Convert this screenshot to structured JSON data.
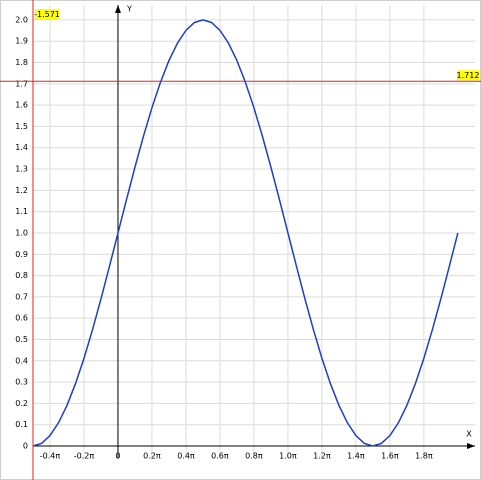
{
  "chart_data": {
    "type": "line",
    "x_label": "X",
    "y_label": "Y",
    "x": [
      -1.571,
      -1.414,
      -1.257,
      -1.1,
      -0.942,
      -0.785,
      -0.628,
      -0.471,
      -0.314,
      -0.157,
      0,
      0.157,
      0.314,
      0.471,
      0.628,
      0.785,
      0.942,
      1.1,
      1.257,
      1.414,
      1.571,
      1.728,
      1.885,
      2.042,
      2.199,
      2.356,
      2.513,
      2.67,
      2.827,
      2.985,
      3.142,
      3.299,
      3.456,
      3.613,
      3.77,
      3.927,
      4.084,
      4.241,
      4.398,
      4.555,
      4.712,
      4.869,
      5.027,
      5.184,
      5.341,
      5.498,
      5.655,
      5.812,
      5.969,
      6.126,
      6.283
    ],
    "series": [
      {
        "color": "#1f3fbf",
        "values": [
          0,
          0.012,
          0.049,
          0.109,
          0.191,
          0.293,
          0.412,
          0.546,
          0.691,
          0.844,
          1,
          1.156,
          1.309,
          1.454,
          1.588,
          1.707,
          1.809,
          1.891,
          1.951,
          1.988,
          2,
          1.988,
          1.951,
          1.891,
          1.809,
          1.707,
          1.588,
          1.454,
          1.309,
          1.156,
          1,
          0.844,
          0.691,
          0.546,
          0.412,
          0.293,
          0.191,
          0.109,
          0.049,
          0.012,
          0,
          0.012,
          0.049,
          0.109,
          0.191,
          0.293,
          0.412,
          0.546,
          0.691,
          0.844,
          1
        ]
      }
    ],
    "xlim": [
      -1.571,
      6.6
    ],
    "ylim": [
      0,
      2.07
    ],
    "xticks": [
      {
        "value": -1.257,
        "label": "-0.4π"
      },
      {
        "value": -0.628,
        "label": "-0.2π"
      },
      0,
      {
        "value": 0.628,
        "label": "0.2π"
      },
      {
        "value": 1.257,
        "label": "0.4π"
      },
      {
        "value": 1.885,
        "label": "0.6π"
      },
      {
        "value": 2.513,
        "label": "0.8π"
      },
      {
        "value": 3.142,
        "label": "1.0π"
      },
      {
        "value": 3.77,
        "label": "1.2π"
      },
      {
        "value": 4.398,
        "label": "1.4π"
      },
      {
        "value": 5.027,
        "label": "1.6π"
      },
      {
        "value": 5.655,
        "label": "1.8π"
      }
    ],
    "yticks": [
      0,
      0.1,
      0.2,
      0.3,
      0.4,
      0.5,
      0.6,
      0.7,
      0.8,
      0.9,
      {
        "value": 1,
        "label": "1.0"
      },
      1.1,
      1.2,
      1.3,
      1.4,
      1.5,
      1.6,
      1.7,
      1.8,
      1.9,
      {
        "value": 2,
        "label": "2.0"
      }
    ],
    "grid": true,
    "crosshair": {
      "x": -1.571,
      "y": 1.712,
      "color": "#e02020"
    }
  }
}
